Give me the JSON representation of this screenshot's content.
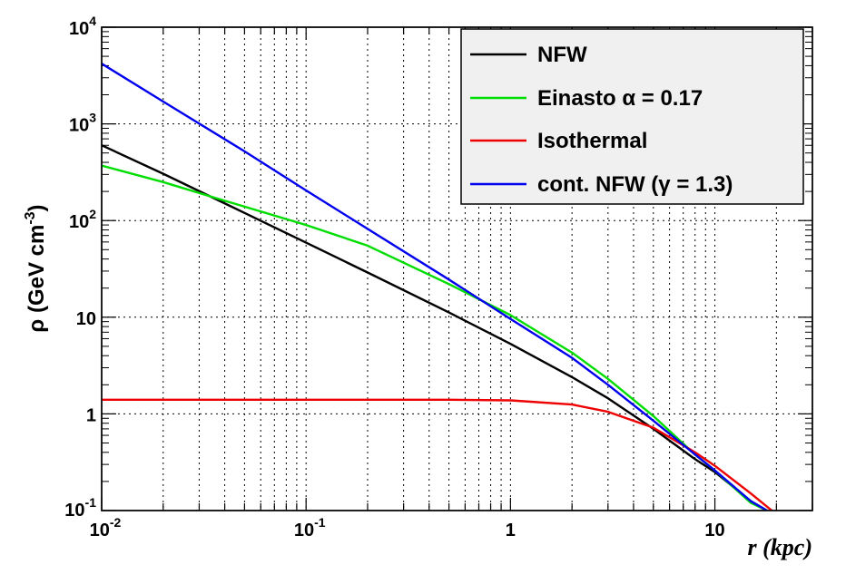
{
  "chart_data": {
    "type": "line",
    "xlabel": "r (kpc)",
    "ylabel": "ρ (GeV cm⁻³)",
    "ylabel_parts": {
      "main": "ρ (GeV cm",
      "sup": "-3",
      "close": ")"
    },
    "xscale": "log",
    "yscale": "log",
    "xlim": [
      0.01,
      30
    ],
    "ylim": [
      0.1,
      10000
    ],
    "grid": true,
    "legend_position": "top-right",
    "x_ticks": [
      {
        "value": 0.01,
        "base": "10",
        "exp": "-2"
      },
      {
        "value": 0.1,
        "base": "10",
        "exp": "-1"
      },
      {
        "value": 1,
        "base": "1",
        "exp": ""
      },
      {
        "value": 10,
        "base": "10",
        "exp": ""
      }
    ],
    "y_ticks": [
      {
        "value": 0.1,
        "base": "10",
        "exp": "-1"
      },
      {
        "value": 1,
        "base": "1",
        "exp": ""
      },
      {
        "value": 10,
        "base": "10",
        "exp": ""
      },
      {
        "value": 100,
        "base": "10",
        "exp": "2"
      },
      {
        "value": 1000,
        "base": "10",
        "exp": "3"
      },
      {
        "value": 10000,
        "base": "10",
        "exp": "4"
      }
    ],
    "series": [
      {
        "name": "NFW",
        "color": "#000000",
        "x": [
          0.01,
          0.02,
          0.05,
          0.1,
          0.2,
          0.5,
          1,
          2,
          3,
          5,
          8,
          10,
          15,
          18
        ],
        "y": [
          600,
          305,
          120,
          59,
          29,
          11.2,
          5.3,
          2.4,
          1.45,
          0.7,
          0.34,
          0.25,
          0.125,
          0.1
        ]
      },
      {
        "name": "Einasto α = 0.17",
        "color": "#00dd00",
        "x": [
          0.01,
          0.02,
          0.04,
          0.1,
          0.2,
          0.5,
          1,
          2,
          3,
          5,
          8,
          10,
          15,
          18
        ],
        "y": [
          370,
          250,
          160,
          90,
          55,
          22,
          10.5,
          4.3,
          2.3,
          0.95,
          0.38,
          0.26,
          0.12,
          0.1
        ]
      },
      {
        "name": "Isothermal",
        "color": "#ee0000",
        "x": [
          0.01,
          0.1,
          0.5,
          1,
          2,
          3,
          5,
          8,
          10,
          15,
          19
        ],
        "y": [
          1.4,
          1.4,
          1.4,
          1.38,
          1.25,
          1.05,
          0.72,
          0.4,
          0.29,
          0.15,
          0.1
        ]
      },
      {
        "name": "cont. NFW (γ = 1.3)",
        "color": "#0000ee",
        "x": [
          0.01,
          0.02,
          0.05,
          0.1,
          0.2,
          0.5,
          1,
          2,
          3,
          5,
          8,
          10,
          15,
          18
        ],
        "y": [
          4200,
          1700,
          520,
          205,
          82,
          24.5,
          9.6,
          3.8,
          2.0,
          0.85,
          0.38,
          0.26,
          0.125,
          0.1
        ]
      }
    ]
  }
}
